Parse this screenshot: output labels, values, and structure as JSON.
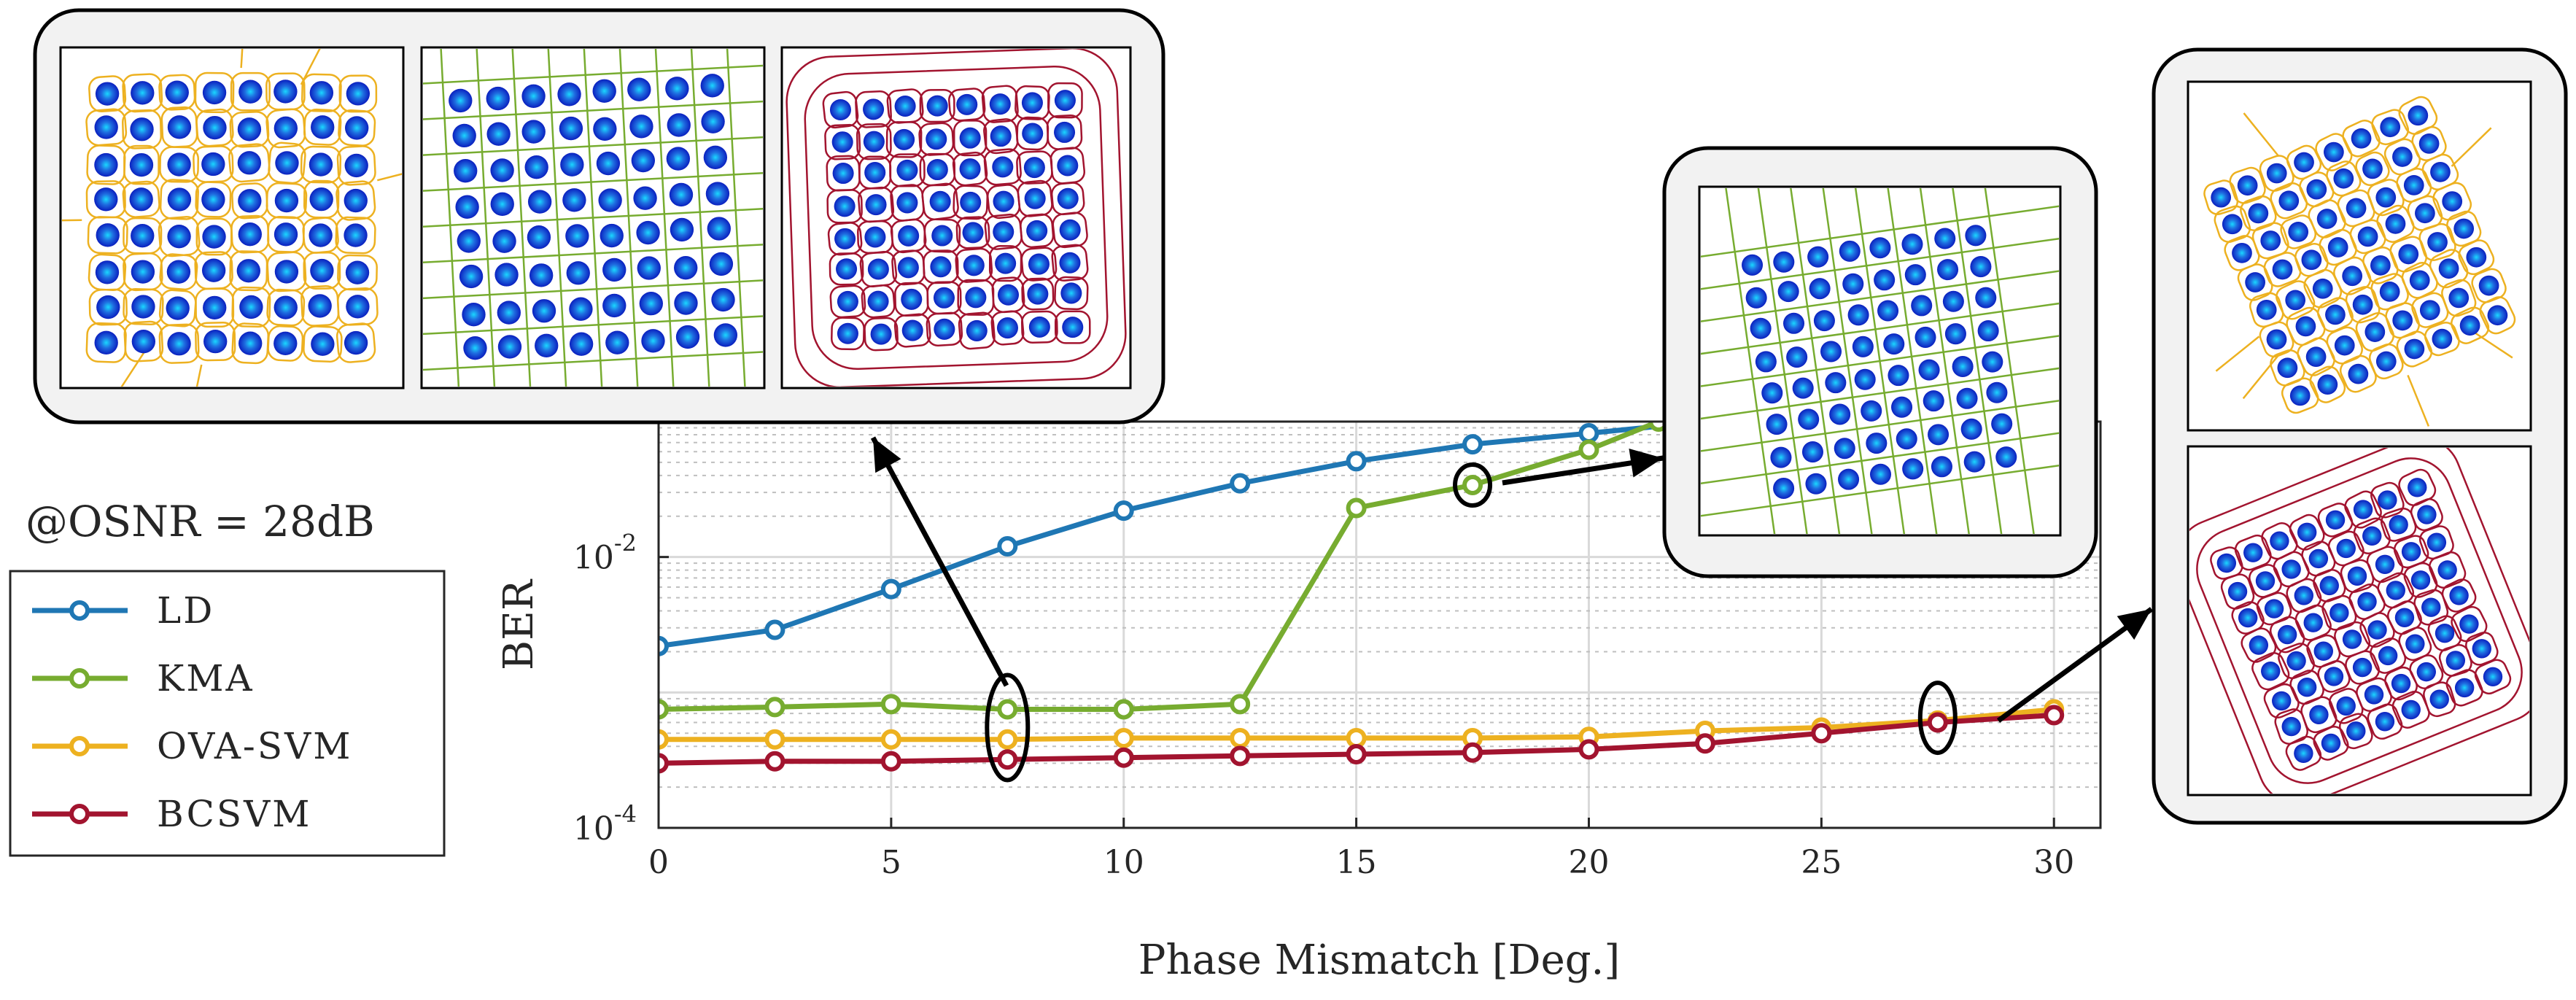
{
  "annotation": "@OSNR = 28dB",
  "chart_data": {
    "type": "line",
    "xlabel": "Phase Mismatch [Deg.]",
    "ylabel": "BER",
    "xlim": [
      0,
      31
    ],
    "ylim": [
      0.0001,
      0.1
    ],
    "yscale": "log",
    "xticks": [
      0,
      5,
      10,
      15,
      20,
      25,
      30
    ],
    "yticks": [
      {
        "value": 0.01,
        "base": "10",
        "exp": "-2"
      },
      {
        "value": 0.0001,
        "base": "10",
        "exp": "-4"
      }
    ],
    "grid": true,
    "legend": "left",
    "x": [
      0,
      2.5,
      5,
      7.5,
      10,
      12.5,
      15,
      17.5,
      20,
      22.5,
      25,
      27.5,
      30
    ],
    "series": [
      {
        "name": "LD",
        "color": "#1f77b4",
        "x": [
          0,
          2.5,
          5,
          7.5,
          10,
          12.5,
          15,
          17.5,
          20,
          22.5
        ],
        "values": [
          0.0022,
          0.0029,
          0.0058,
          0.012,
          0.022,
          0.035,
          0.051,
          0.068,
          0.082,
          0.1
        ]
      },
      {
        "name": "KMA",
        "color": "#77ac30",
        "x": [
          0,
          2.5,
          5,
          7.5,
          10,
          12.5,
          15,
          17.5,
          20,
          21.5
        ],
        "values": [
          0.00075,
          0.00078,
          0.00082,
          0.00075,
          0.00075,
          0.00082,
          0.023,
          0.034,
          0.062,
          0.1
        ]
      },
      {
        "name": "OVA-SVM",
        "color": "#edb120",
        "x": [
          0,
          2.5,
          5,
          7.5,
          10,
          12.5,
          15,
          17.5,
          20,
          22.5,
          25,
          27.5,
          30
        ],
        "values": [
          0.00045,
          0.00045,
          0.00045,
          0.00045,
          0.00046,
          0.00046,
          0.00046,
          0.00046,
          0.00047,
          0.00052,
          0.00055,
          0.00062,
          0.00075
        ]
      },
      {
        "name": "BCSVM",
        "color": "#a2142f",
        "x": [
          0,
          2.5,
          5,
          7.5,
          10,
          12.5,
          15,
          17.5,
          20,
          22.5,
          25,
          27.5,
          30
        ],
        "values": [
          0.0003,
          0.00031,
          0.00031,
          0.00032,
          0.00033,
          0.00034,
          0.00035,
          0.00036,
          0.00038,
          0.00042,
          0.0005,
          0.0006,
          0.00068
        ]
      }
    ],
    "highlight_marks": [
      {
        "x": 7.5,
        "y": 0.00055,
        "target_inset": "inset-left"
      },
      {
        "x": 17.5,
        "y": 0.034,
        "target_inset": "inset-middle"
      },
      {
        "x": 27.5,
        "y": 0.00065,
        "target_inset": "inset-right"
      }
    ]
  },
  "insets": {
    "left_panels": [
      {
        "boundary": "#edb120",
        "style": "voronoi-irregular"
      },
      {
        "boundary": "#77ac30",
        "style": "grid-lines"
      },
      {
        "boundary": "#a2142f",
        "style": "closed-contours"
      }
    ],
    "middle_panels": [
      {
        "boundary": "#77ac30",
        "style": "grid-lines-rotated"
      }
    ],
    "right_panels": [
      {
        "boundary": "#edb120",
        "style": "voronoi-rotated"
      },
      {
        "boundary": "#a2142f",
        "style": "closed-contours-rotated"
      }
    ]
  }
}
